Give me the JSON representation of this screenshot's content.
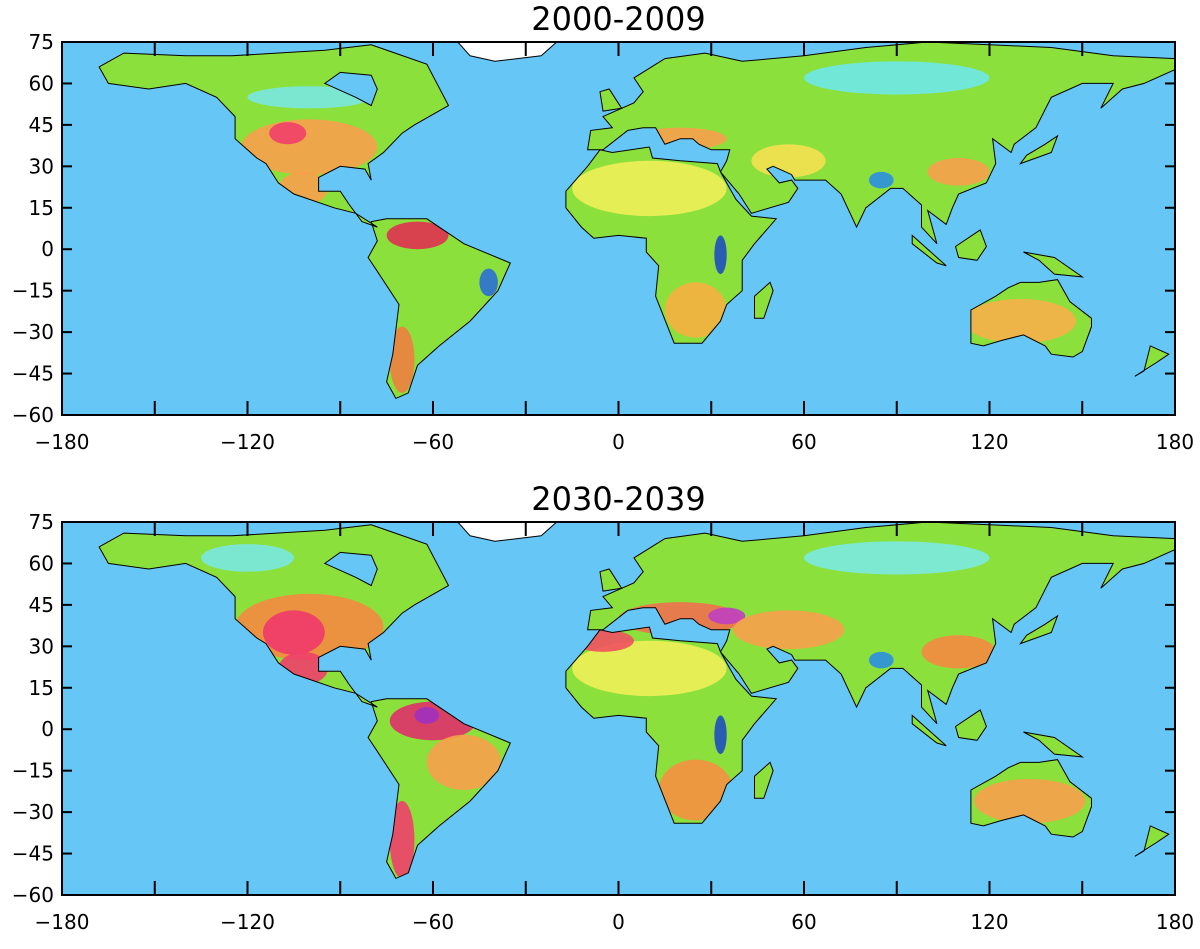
{
  "chart_data": [
    {
      "type": "map",
      "title": "2000-2009",
      "xlim": [
        -180,
        180
      ],
      "ylim": [
        -60,
        75
      ],
      "xticks": [
        {
          "value": -180,
          "label": "−180"
        },
        {
          "value": -120,
          "label": "−120"
        },
        {
          "value": -60,
          "label": "−60"
        },
        0,
        60,
        120,
        180
      ],
      "xminorticks": [
        -150,
        -90,
        -30,
        30,
        90,
        150
      ],
      "yticks": [
        75,
        60,
        45,
        30,
        15,
        0,
        {
          "value": -15,
          "label": "−15"
        },
        {
          "value": -30,
          "label": "−30"
        },
        {
          "value": -45,
          "label": "−45"
        },
        {
          "value": -60,
          "label": "−60"
        }
      ]
    },
    {
      "type": "map",
      "title": "2030-2039",
      "xlim": [
        -180,
        180
      ],
      "ylim": [
        -60,
        75
      ],
      "xticks": [
        {
          "value": -180,
          "label": "−180"
        },
        {
          "value": -120,
          "label": "−120"
        },
        {
          "value": -60,
          "label": "−60"
        },
        0,
        60,
        120,
        180
      ],
      "xminorticks": [
        -150,
        -90,
        -30,
        30,
        90,
        150
      ],
      "yticks": [
        75,
        60,
        45,
        30,
        15,
        0,
        {
          "value": -15,
          "label": "−15"
        },
        {
          "value": -30,
          "label": "−30"
        },
        {
          "value": -45,
          "label": "−45"
        },
        {
          "value": -60,
          "label": "−60"
        }
      ]
    }
  ]
}
